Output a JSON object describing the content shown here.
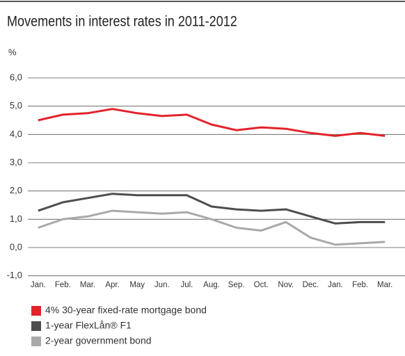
{
  "chart_data": {
    "type": "line",
    "title": "Movements in interest rates in 2011-2012",
    "y_label": "%",
    "categories": [
      "Jan.",
      "Feb.",
      "Mar.",
      "Apr.",
      "May",
      "Jun.",
      "Jul.",
      "Aug.",
      "Sep.",
      "Oct.",
      "Nov.",
      "Dec.",
      "Jan.",
      "Feb.",
      "Mar."
    ],
    "series": [
      {
        "name": "4% 30-year fixed-rate mortgage bond",
        "color": "#e3232b",
        "values": [
          4.5,
          4.7,
          4.75,
          4.9,
          4.75,
          4.65,
          4.7,
          4.35,
          4.15,
          4.25,
          4.2,
          4.05,
          3.95,
          4.05,
          3.95
        ]
      },
      {
        "name": "1-year FlexLån® F1",
        "color": "#4d4d4f",
        "values": [
          1.3,
          1.6,
          1.75,
          1.9,
          1.85,
          1.85,
          1.85,
          1.45,
          1.35,
          1.3,
          1.35,
          1.1,
          0.85,
          0.9,
          0.9
        ]
      },
      {
        "name": "2-year government bond",
        "color": "#a7a9ab",
        "values": [
          0.7,
          1.0,
          1.1,
          1.3,
          1.25,
          1.2,
          1.25,
          1.0,
          0.7,
          0.6,
          0.9,
          0.35,
          0.1,
          0.15,
          0.2
        ]
      }
    ],
    "ylim": [
      -1,
      6.5
    ],
    "yticks": [
      {
        "value": -1,
        "label": "-1,0"
      },
      {
        "value": 0,
        "label": "0,0"
      },
      {
        "value": 1,
        "label": "1,0"
      },
      {
        "value": 2,
        "label": "2,0"
      },
      {
        "value": 3,
        "label": "3,0"
      },
      {
        "value": 4,
        "label": "4,0"
      },
      {
        "value": 5,
        "label": "5,0"
      },
      {
        "value": 6,
        "label": "6,0"
      }
    ],
    "grid": true,
    "legend": "bottom-left"
  }
}
